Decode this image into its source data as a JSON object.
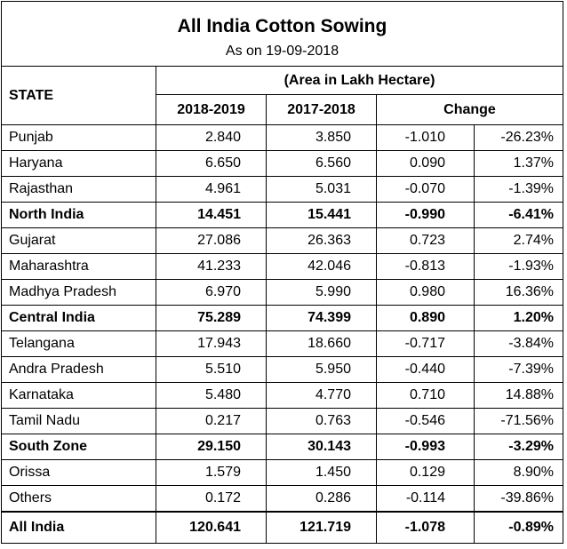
{
  "title": "All India Cotton Sowing",
  "subtitle": "As on 19-09-2018",
  "header": {
    "state": "STATE",
    "area_note": "(Area in Lakh Hectare)",
    "col_2018": "2018-2019",
    "col_2017": "2017-2018",
    "col_change": "Change"
  },
  "rows": [
    {
      "state": "Punjab",
      "y2018": "2.840",
      "y2017": "3.850",
      "change": "-1.010",
      "pct": "-26.23%",
      "bold": false
    },
    {
      "state": "Haryana",
      "y2018": "6.650",
      "y2017": "6.560",
      "change": "0.090",
      "pct": "1.37%",
      "bold": false
    },
    {
      "state": "Rajasthan",
      "y2018": "4.961",
      "y2017": "5.031",
      "change": "-0.070",
      "pct": "-1.39%",
      "bold": false
    },
    {
      "state": "North India",
      "y2018": "14.451",
      "y2017": "15.441",
      "change": "-0.990",
      "pct": "-6.41%",
      "bold": true
    },
    {
      "state": "Gujarat",
      "y2018": "27.086",
      "y2017": "26.363",
      "change": "0.723",
      "pct": "2.74%",
      "bold": false
    },
    {
      "state": "Maharashtra",
      "y2018": "41.233",
      "y2017": "42.046",
      "change": "-0.813",
      "pct": "-1.93%",
      "bold": false
    },
    {
      "state": "Madhya Pradesh",
      "y2018": "6.970",
      "y2017": "5.990",
      "change": "0.980",
      "pct": "16.36%",
      "bold": false
    },
    {
      "state": "Central India",
      "y2018": "75.289",
      "y2017": "74.399",
      "change": "0.890",
      "pct": "1.20%",
      "bold": true
    },
    {
      "state": "Telangana",
      "y2018": "17.943",
      "y2017": "18.660",
      "change": "-0.717",
      "pct": "-3.84%",
      "bold": false
    },
    {
      "state": "Andra Pradesh",
      "y2018": "5.510",
      "y2017": "5.950",
      "change": "-0.440",
      "pct": "-7.39%",
      "bold": false
    },
    {
      "state": "Karnataka",
      "y2018": "5.480",
      "y2017": "4.770",
      "change": "0.710",
      "pct": "14.88%",
      "bold": false
    },
    {
      "state": "Tamil Nadu",
      "y2018": "0.217",
      "y2017": "0.763",
      "change": "-0.546",
      "pct": "-71.56%",
      "bold": false
    },
    {
      "state": "South Zone",
      "y2018": "29.150",
      "y2017": "30.143",
      "change": "-0.993",
      "pct": "-3.29%",
      "bold": true
    },
    {
      "state": "Orissa",
      "y2018": "1.579",
      "y2017": "1.450",
      "change": "0.129",
      "pct": "8.90%",
      "bold": false
    },
    {
      "state": "Others",
      "y2018": "0.172",
      "y2017": "0.286",
      "change": "-0.114",
      "pct": "-39.86%",
      "bold": false
    }
  ],
  "total": {
    "state": "All India",
    "y2018": "120.641",
    "y2017": "121.719",
    "change": "-1.078",
    "pct": "-0.89%"
  }
}
